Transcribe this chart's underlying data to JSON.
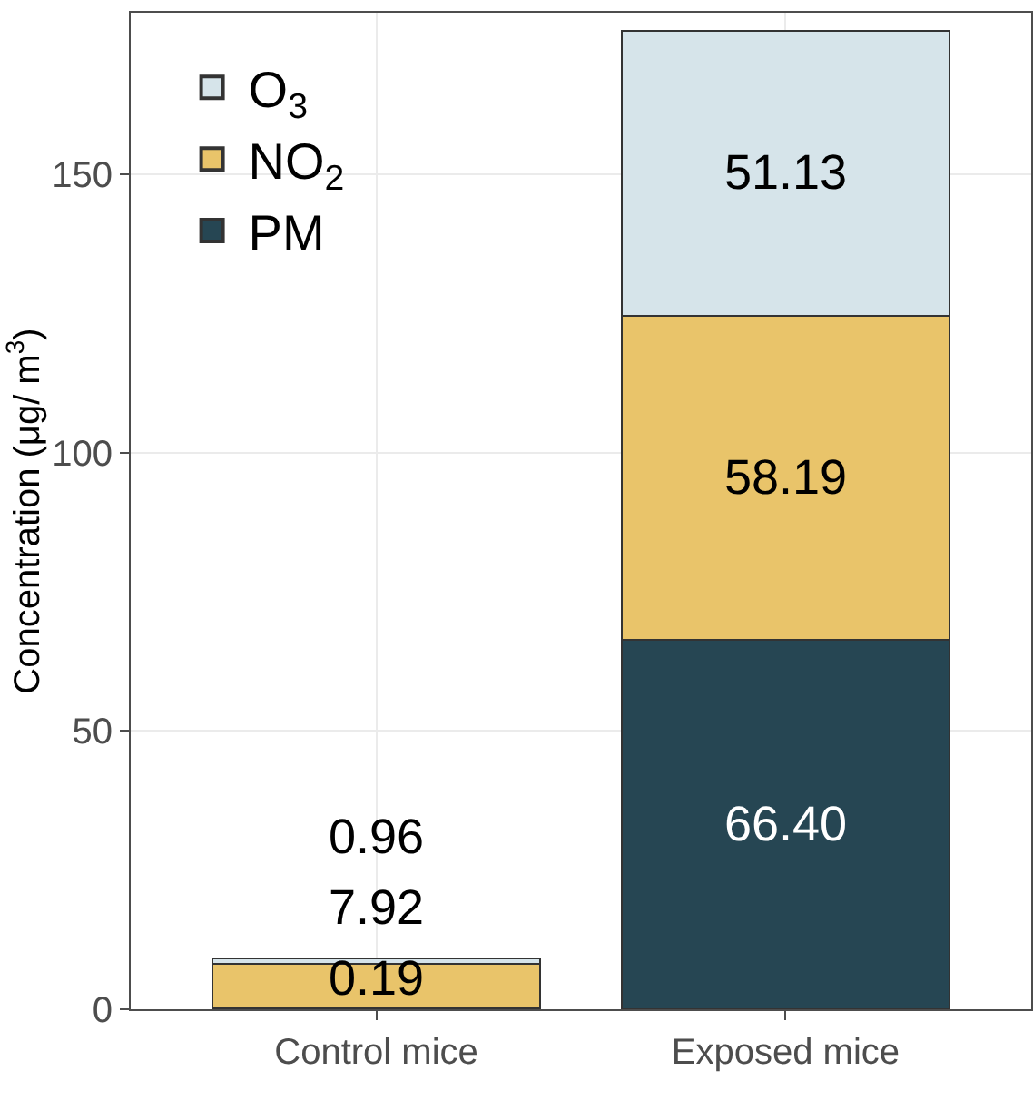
{
  "chart_data": {
    "type": "bar",
    "stacked": true,
    "ylabel": "Concentration (μg/ m$^{3}$)",
    "categories": [
      "Control mice",
      "Exposed mice"
    ],
    "series": [
      {
        "name": "PM",
        "color": "#264653",
        "values": [
          0.19,
          66.4
        ],
        "value_labels": [
          "0.19",
          "66.40"
        ]
      },
      {
        "name": "NO$_{2}$",
        "color": "#e9c46a",
        "values": [
          7.92,
          58.19
        ],
        "value_labels": [
          "7.92",
          "58.19"
        ]
      },
      {
        "name": "O$_{3}$",
        "color": "#d6e4ea",
        "values": [
          0.96,
          51.13
        ],
        "value_labels": [
          "0.96",
          "51.13"
        ]
      }
    ],
    "ylim": [
      0,
      179
    ],
    "yticks": [
      0,
      50,
      100,
      150
    ],
    "grid": true,
    "legend": "top left"
  }
}
